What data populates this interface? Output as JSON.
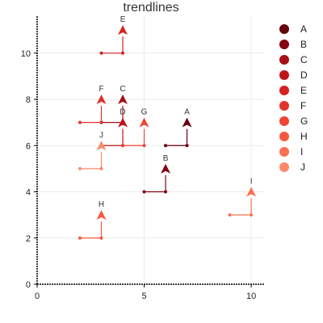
{
  "chart_data": {
    "type": "line",
    "title": "trendlines",
    "xlabel": "",
    "ylabel": "",
    "xlim": [
      0,
      10.6
    ],
    "ylim": [
      0,
      11.6
    ],
    "xticks": [
      0,
      5,
      10
    ],
    "yticks": [
      0,
      2,
      4,
      6,
      8,
      10
    ],
    "grid": true,
    "legend_position": "right",
    "series": [
      {
        "name": "A",
        "color": "#67000d",
        "points": [
          [
            6,
            6
          ],
          [
            7,
            6
          ],
          [
            7,
            7
          ]
        ]
      },
      {
        "name": "B",
        "color": "#85020f",
        "points": [
          [
            5,
            4
          ],
          [
            6,
            4
          ],
          [
            6,
            5
          ]
        ]
      },
      {
        "name": "C",
        "color": "#a50f15",
        "points": [
          [
            3,
            7
          ],
          [
            4,
            7
          ],
          [
            4,
            8
          ]
        ]
      },
      {
        "name": "D",
        "color": "#bd1419",
        "points": [
          [
            3,
            6
          ],
          [
            4,
            6
          ],
          [
            4,
            7
          ]
        ]
      },
      {
        "name": "E",
        "color": "#d2221f",
        "points": [
          [
            3,
            10
          ],
          [
            4,
            10
          ],
          [
            4,
            11
          ]
        ]
      },
      {
        "name": "F",
        "color": "#e2322c",
        "points": [
          [
            2,
            7
          ],
          [
            3,
            7
          ],
          [
            3,
            8
          ]
        ]
      },
      {
        "name": "G",
        "color": "#ef4533",
        "points": [
          [
            4,
            6
          ],
          [
            5,
            6
          ],
          [
            5,
            7
          ]
        ]
      },
      {
        "name": "H",
        "color": "#f6583f",
        "points": [
          [
            2,
            2
          ],
          [
            3,
            2
          ],
          [
            3,
            3
          ]
        ]
      },
      {
        "name": "I",
        "color": "#fb7050",
        "points": [
          [
            9,
            3
          ],
          [
            10,
            3
          ],
          [
            10,
            4
          ]
        ]
      },
      {
        "name": "J",
        "color": "#fc8a6a",
        "points": [
          [
            2,
            5
          ],
          [
            3,
            5
          ],
          [
            3,
            6
          ]
        ]
      }
    ]
  }
}
